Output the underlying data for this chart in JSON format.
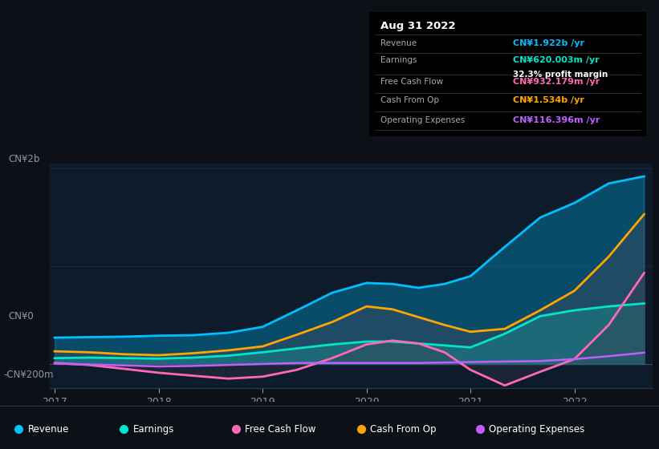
{
  "bg_color": "#0d1117",
  "plot_bg_color": "#0d1b2a",
  "title_date": "Aug 31 2022",
  "tooltip": {
    "Revenue": {
      "value": "CN¥1.922b /yr",
      "color": "#00bfff"
    },
    "Earnings": {
      "value": "CN¥620.003m /yr",
      "color": "#00e5cc"
    },
    "profit_margin": "32.3% profit margin",
    "Free Cash Flow": {
      "value": "CN¥932.179m /yr",
      "color": "#ff69b4"
    },
    "Cash From Op": {
      "value": "CN¥1.534b /yr",
      "color": "#ffa500"
    },
    "Operating Expenses": {
      "value": "CN¥116.396m /yr",
      "color": "#bf5fff"
    }
  },
  "ylabel_top": "CN¥2b",
  "ylabel_zero": "CN¥0",
  "ylabel_neg": "-CN¥200m",
  "ylim": [
    -250000000,
    2050000000
  ],
  "legend": [
    {
      "label": "Revenue",
      "color": "#00bfff"
    },
    {
      "label": "Earnings",
      "color": "#00e5cc"
    },
    {
      "label": "Free Cash Flow",
      "color": "#ff69b4"
    },
    {
      "label": "Cash From Op",
      "color": "#ffa500"
    },
    {
      "label": "Operating Expenses",
      "color": "#bf5fff"
    }
  ],
  "x": [
    2017.0,
    2017.33,
    2017.67,
    2018.0,
    2018.33,
    2018.67,
    2019.0,
    2019.33,
    2019.67,
    2020.0,
    2020.25,
    2020.5,
    2020.75,
    2021.0,
    2021.33,
    2021.67,
    2022.0,
    2022.33,
    2022.67
  ],
  "revenue": [
    270000000,
    275000000,
    280000000,
    290000000,
    295000000,
    320000000,
    380000000,
    550000000,
    730000000,
    830000000,
    820000000,
    780000000,
    820000000,
    900000000,
    1200000000,
    1500000000,
    1650000000,
    1850000000,
    1922000000
  ],
  "earnings": [
    60000000,
    65000000,
    60000000,
    55000000,
    65000000,
    85000000,
    120000000,
    160000000,
    200000000,
    230000000,
    230000000,
    210000000,
    190000000,
    170000000,
    310000000,
    490000000,
    550000000,
    590000000,
    620000000
  ],
  "free_cash_flow": [
    10000000,
    -10000000,
    -50000000,
    -90000000,
    -120000000,
    -150000000,
    -130000000,
    -60000000,
    60000000,
    200000000,
    240000000,
    210000000,
    120000000,
    -60000000,
    -220000000,
    -80000000,
    50000000,
    400000000,
    932000000
  ],
  "cash_from_op": [
    130000000,
    120000000,
    100000000,
    90000000,
    110000000,
    140000000,
    180000000,
    300000000,
    430000000,
    590000000,
    560000000,
    480000000,
    400000000,
    330000000,
    360000000,
    550000000,
    750000000,
    1100000000,
    1534000000
  ],
  "operating_expenses": [
    5000000,
    -5000000,
    -15000000,
    -25000000,
    -20000000,
    -10000000,
    0,
    10000000,
    10000000,
    10000000,
    10000000,
    10000000,
    15000000,
    20000000,
    25000000,
    30000000,
    50000000,
    80000000,
    116000000
  ]
}
